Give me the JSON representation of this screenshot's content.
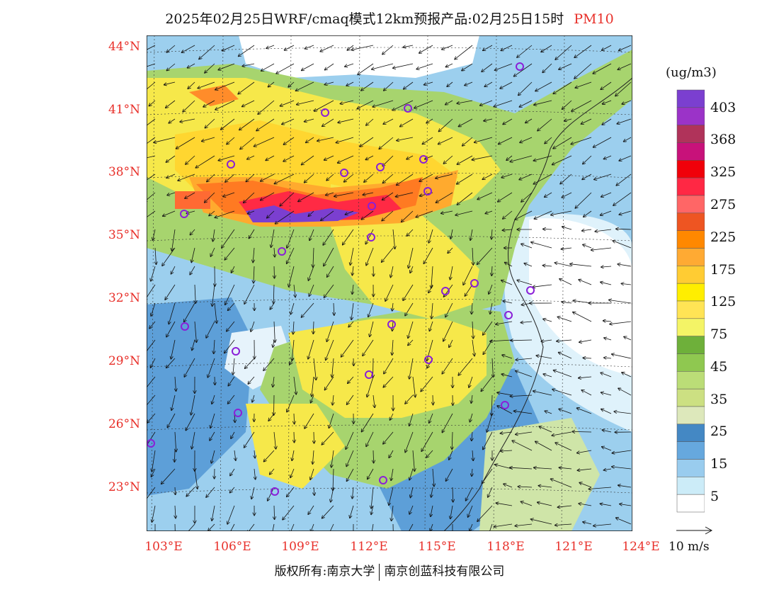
{
  "title": {
    "main": "2025年02月25日WRF/cmaq模式12km预报产品:02月25日15时",
    "variable": "PM10"
  },
  "map": {
    "lat_labels": [
      "44°N",
      "41°N",
      "38°N",
      "35°N",
      "32°N",
      "29°N",
      "26°N",
      "23°N"
    ],
    "lon_labels": [
      "103°E",
      "106°E",
      "109°E",
      "112°E",
      "115°E",
      "118°E",
      "121°E",
      "124°E"
    ]
  },
  "legend": {
    "unit": "(ug/m3)",
    "labels": [
      "403",
      "368",
      "325",
      "275",
      "225",
      "175",
      "125",
      "75",
      "45",
      "35",
      "25",
      "15",
      "5"
    ],
    "colors": [
      "#7b3fd0",
      "#9b33c8",
      "#b0335a",
      "#c8127a",
      "#f0000a",
      "#ff2844",
      "#ff6666",
      "#ee5522",
      "#ff8800",
      "#ffaa33",
      "#ffcc33",
      "#ffee00",
      "#ffe455",
      "#f4f466",
      "#6eb03a",
      "#8fc850",
      "#bbdd77",
      "#cce082",
      "#dde8bb",
      "#4488c4",
      "#66a8de",
      "#99ccee",
      "#ccecf8",
      "#ffffff"
    ],
    "wind_reference": "10 m/s"
  },
  "footer": {
    "left": "版权所有:南京大学",
    "right": "南京创蓝科技有限公司"
  }
}
